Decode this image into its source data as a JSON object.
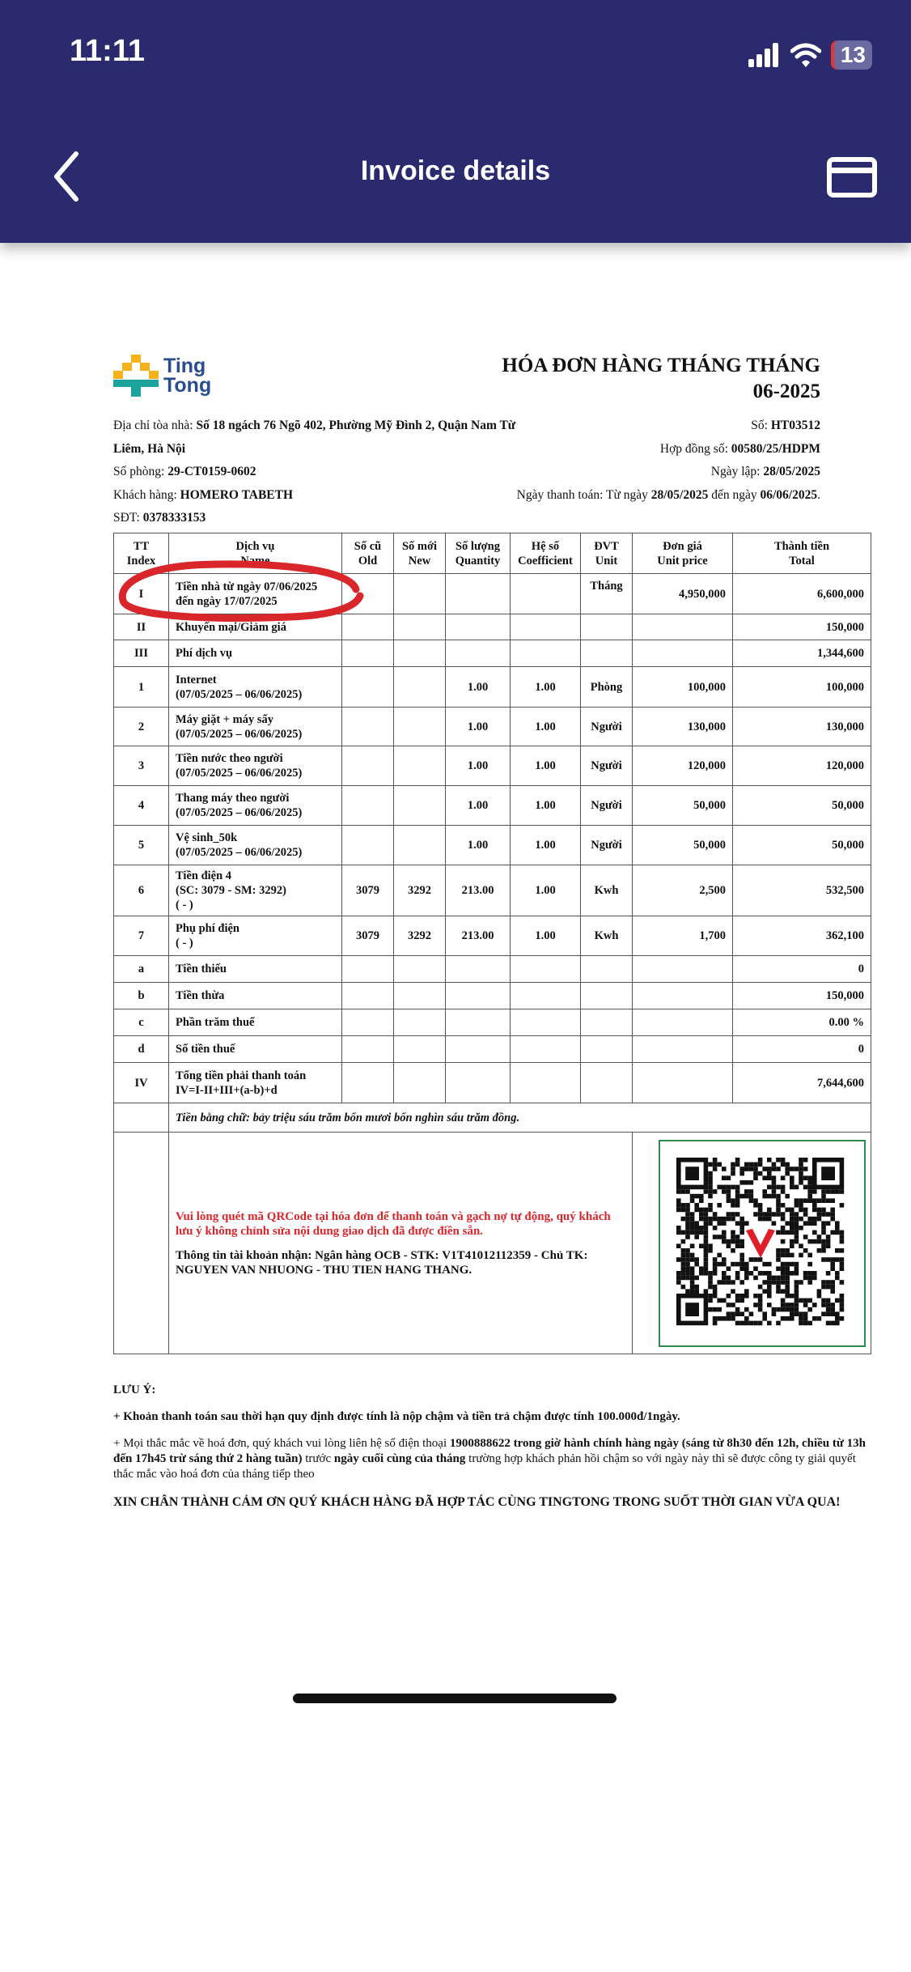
{
  "status_bar": {
    "time": "11:11",
    "battery": "13",
    "icons": [
      "signal-icon",
      "wifi-icon",
      "battery-icon"
    ]
  },
  "nav": {
    "title": "Invoice details",
    "back_icon": "chevron-left-icon",
    "right_icon": "card-icon"
  },
  "colors": {
    "header": "#2b2a6e",
    "logo_text": "#2a4d8f",
    "qr_note": "#d9262b",
    "qr_border": "#2e8b4e",
    "annotation": "#d9262b"
  },
  "logo": {
    "line1": "Ting",
    "line2": "Tong"
  },
  "invoice": {
    "title": "HÓA ĐƠN HÀNG THÁNG THÁNG 06-2025",
    "left": [
      {
        "label": "Địa chỉ tòa nhà: ",
        "value": "Số 18 ngách 76 Ngõ 402, Phường Mỹ Đình 2, Quận Nam Từ Liêm, Hà Nội"
      },
      {
        "label": "Số phòng: ",
        "value": "29-CT0159-0602"
      },
      {
        "label": "Khách hàng: ",
        "value": "HOMERO TABETH"
      },
      {
        "label": "SĐT: ",
        "value": "0378333153"
      }
    ],
    "right": [
      {
        "label": "Số: ",
        "value": "HT03512"
      },
      {
        "label": "Hợp đồng số: ",
        "value": "00580/25/HDPM"
      },
      {
        "label": "Ngày lập: ",
        "value": "28/05/2025"
      },
      {
        "label": "Ngày thanh toán: Từ ngày ",
        "value": "28/05/2025",
        "mid": " đến ngày ",
        "value2": "06/06/2025",
        "end": "."
      }
    ],
    "headers": [
      "TT\nIndex",
      "Dịch vụ\nName",
      "Số cũ\nOld",
      "Số mới\nNew",
      "Số lượng\nQuantity",
      "Hệ số\nCoefficient",
      "ĐVT\nUnit",
      "Đơn giá\nUnit price",
      "Thành tiền\nTotal"
    ],
    "rows": [
      [
        "I",
        "Tiền nhà từ ngày 07/06/2025\nđến ngày 17/07/2025",
        "",
        "",
        "",
        "",
        "Tháng",
        "4,950,000",
        "6,600,000"
      ],
      [
        "II",
        "Khuyến mại/Giảm giá",
        "",
        "",
        "",
        "",
        "",
        "",
        "150,000"
      ],
      [
        "III",
        "Phí dịch vụ",
        "",
        "",
        "",
        "",
        "",
        "",
        "1,344,600"
      ],
      [
        "1",
        "Internet\n(07/05/2025 – 06/06/2025)",
        "",
        "",
        "1.00",
        "1.00",
        "Phòng",
        "100,000",
        "100,000"
      ],
      [
        "2",
        "Máy giặt + máy sấy\n(07/05/2025 – 06/06/2025)",
        "",
        "",
        "1.00",
        "1.00",
        "Người",
        "130,000",
        "130,000"
      ],
      [
        "3",
        "Tiền nước theo người\n(07/05/2025 – 06/06/2025)",
        "",
        "",
        "1.00",
        "1.00",
        "Người",
        "120,000",
        "120,000"
      ],
      [
        "4",
        "Thang máy theo người\n(07/05/2025 – 06/06/2025)",
        "",
        "",
        "1.00",
        "1.00",
        "Người",
        "50,000",
        "50,000"
      ],
      [
        "5",
        "Vệ sinh_50k\n(07/05/2025 – 06/06/2025)",
        "",
        "",
        "1.00",
        "1.00",
        "Người",
        "50,000",
        "50,000"
      ],
      [
        "6",
        "Tiền điện 4\n(SC: 3079 - SM: 3292)\n( - )",
        "3079",
        "3292",
        "213.00",
        "1.00",
        "Kwh",
        "2,500",
        "532,500"
      ],
      [
        "7",
        "Phụ phí điện\n( - )",
        "3079",
        "3292",
        "213.00",
        "1.00",
        "Kwh",
        "1,700",
        "362,100"
      ],
      [
        "a",
        "Tiền thiếu",
        "",
        "",
        "",
        "",
        "",
        "",
        "0"
      ],
      [
        "b",
        "Tiền thừa",
        "",
        "",
        "",
        "",
        "",
        "",
        "150,000"
      ],
      [
        "c",
        "Phần trăm thuế",
        "",
        "",
        "",
        "",
        "",
        "",
        "0.00 %"
      ],
      [
        "d",
        "Số tiền thuế",
        "",
        "",
        "",
        "",
        "",
        "",
        "0"
      ],
      [
        "IV",
        "Tổng tiền phải thanh toán\nIV=I-II+III+(a-b)+d",
        "",
        "",
        "",
        "",
        "",
        "",
        "7,644,600"
      ]
    ],
    "words_label": "Tiền bằng chữ: ",
    "words_value": "bảy triệu sáu trăm bốn mươi bốn nghìn sáu trăm đồng.",
    "qr_note": "Vui lòng quét mã QRCode tại hóa đơn để thanh toán và gạch nợ tự động, quý khách lưu ý không chỉnh sửa nội dung giao dịch đã được điền sẵn.",
    "account_label": "Thông tin tài khoản nhận: Ngân hàng OCB - STK: ",
    "account_number": "V1T41012112359",
    "account_owner_label": " - Chủ TK: ",
    "account_owner": "NGUYEN VAN NHUONG - THU TIEN HANG THANG",
    "account_end": "."
  },
  "notes": {
    "title": "LƯU Ý:",
    "late": "+ Khoản thanh toán sau thời hạn quy định được tính là nộp chậm và tiền trả chậm được tính 100.000đ/1ngày.",
    "contact_a": "+ Mọi thắc mắc về hoá đơn, quý khách vui lòng liên hệ số điện thoại ",
    "contact_b": "1900888622 trong giờ hành chính hàng ngày (sáng từ 8h30 đến 12h, chiều từ 13h đến 17h45 trừ sáng thứ 2 hàng tuần)",
    "contact_c": " trước ",
    "contact_d": "ngày cuối cùng của tháng",
    "contact_e": " trường hợp khách phản hồi chậm so với ngày này thì sẽ được công ty giải quyết thắc mắc vào hoá đơn của tháng tiếp theo",
    "thanks": "XIN CHÂN THÀNH CẢM ƠN QUÝ KHÁCH HÀNG ĐÃ HỢP TÁC CÙNG TINGTONG TRONG SUỐT THỜI GIAN VỪA QUA!"
  }
}
